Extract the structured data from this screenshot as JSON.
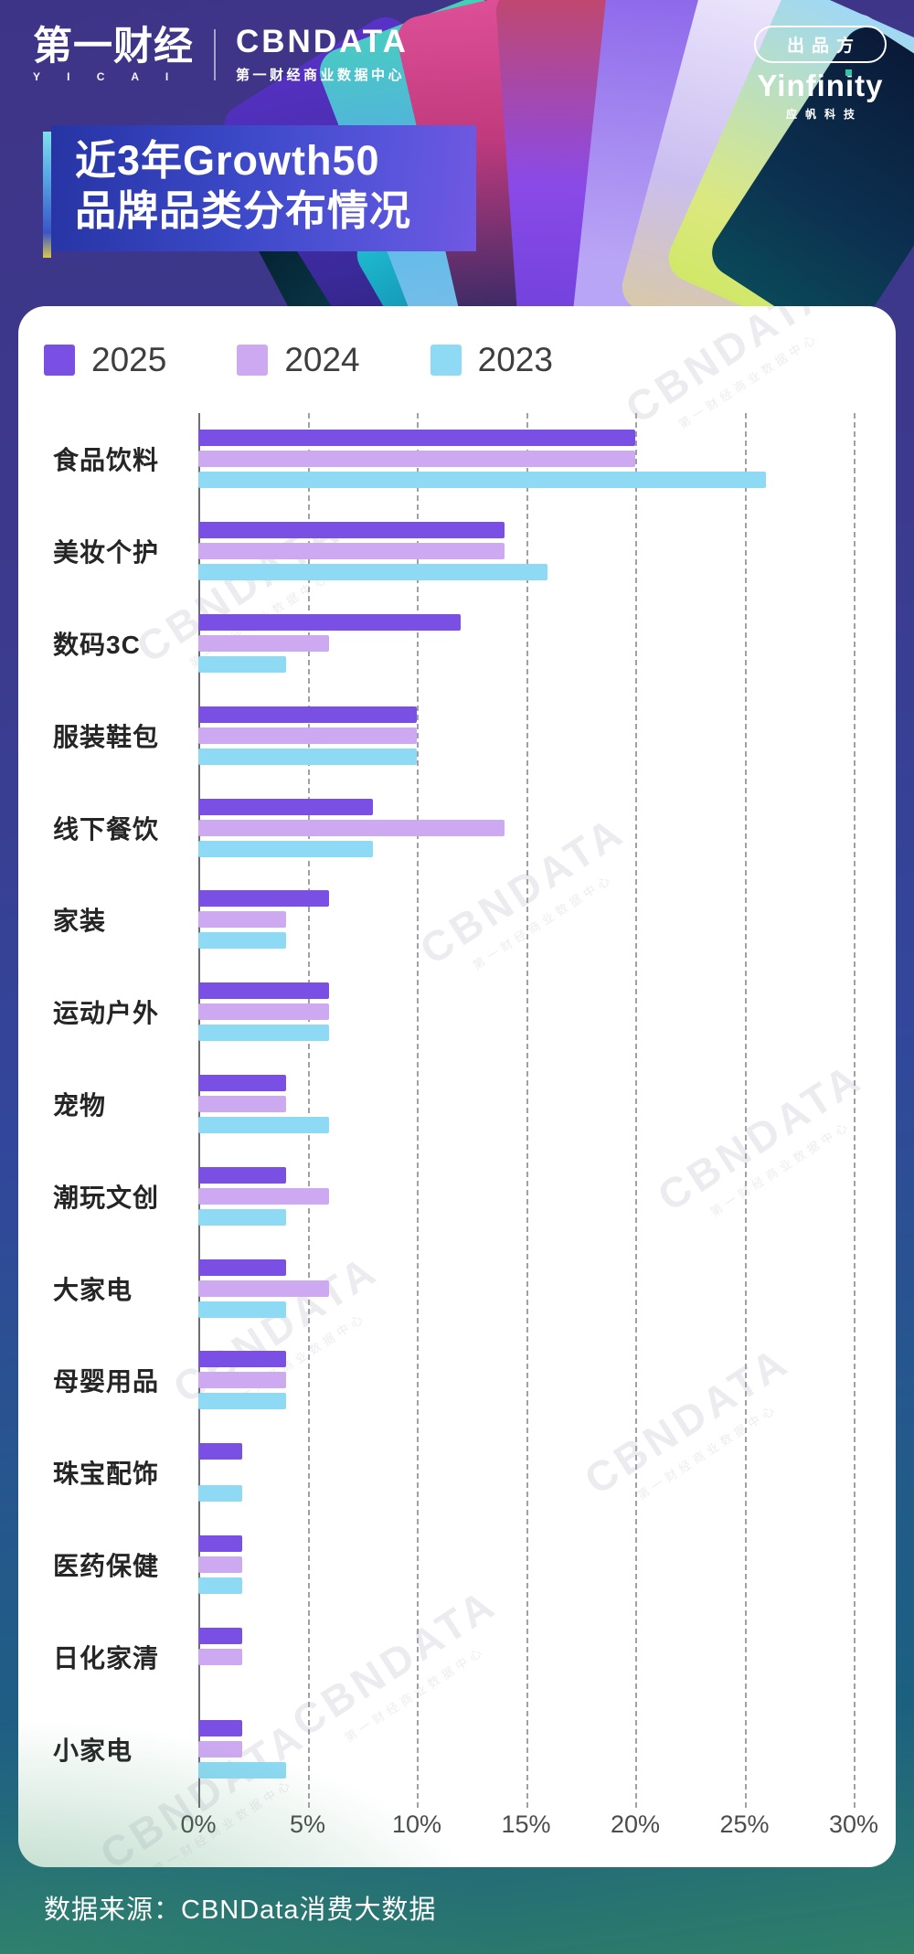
{
  "header": {
    "yicai": {
      "zh": "第一财经",
      "en": "Y I C A I"
    },
    "cbndata": {
      "logo": "CBNDATA",
      "sub": "第一财经商业数据中心"
    },
    "producer": {
      "badge": "出品方",
      "logo": "Yinfinity",
      "sub": "应帆科技"
    }
  },
  "title": {
    "line1": "近3年Growth50",
    "line2": "品牌品类分布情况"
  },
  "chart_data": {
    "type": "bar",
    "orientation": "horizontal",
    "title": "近3年Growth50品牌品类分布情况",
    "categories": [
      "食品饮料",
      "美妆个护",
      "数码3C",
      "服装鞋包",
      "线下餐饮",
      "家装",
      "运动户外",
      "宠物",
      "潮玩文创",
      "大家电",
      "母婴用品",
      "珠宝配饰",
      "医药保健",
      "日化家清",
      "小家电"
    ],
    "series": [
      {
        "name": "2025",
        "color": "#7a4fe4",
        "values": [
          20,
          14,
          12,
          10,
          8,
          6,
          6,
          4,
          4,
          4,
          4,
          2,
          2,
          2,
          2
        ]
      },
      {
        "name": "2024",
        "color": "#cda9f2",
        "values": [
          20,
          14,
          6,
          10,
          14,
          4,
          6,
          4,
          6,
          6,
          4,
          0,
          2,
          2,
          2
        ]
      },
      {
        "name": "2023",
        "color": "#8ed9f4",
        "values": [
          26,
          16,
          4,
          10,
          8,
          4,
          6,
          6,
          4,
          4,
          4,
          2,
          2,
          0,
          4
        ]
      }
    ],
    "x_ticks": [
      "0%",
      "5%",
      "10%",
      "15%",
      "20%",
      "25%",
      "30%"
    ],
    "xlim": [
      0,
      30
    ],
    "unit": "%",
    "grid": "dashed-vertical",
    "legend_position": "top-left"
  },
  "watermark": {
    "text": "CBNDATA",
    "subtext": "第一财经商业数据中心"
  },
  "footer": {
    "source": "数据来源：CBNData消费大数据"
  }
}
